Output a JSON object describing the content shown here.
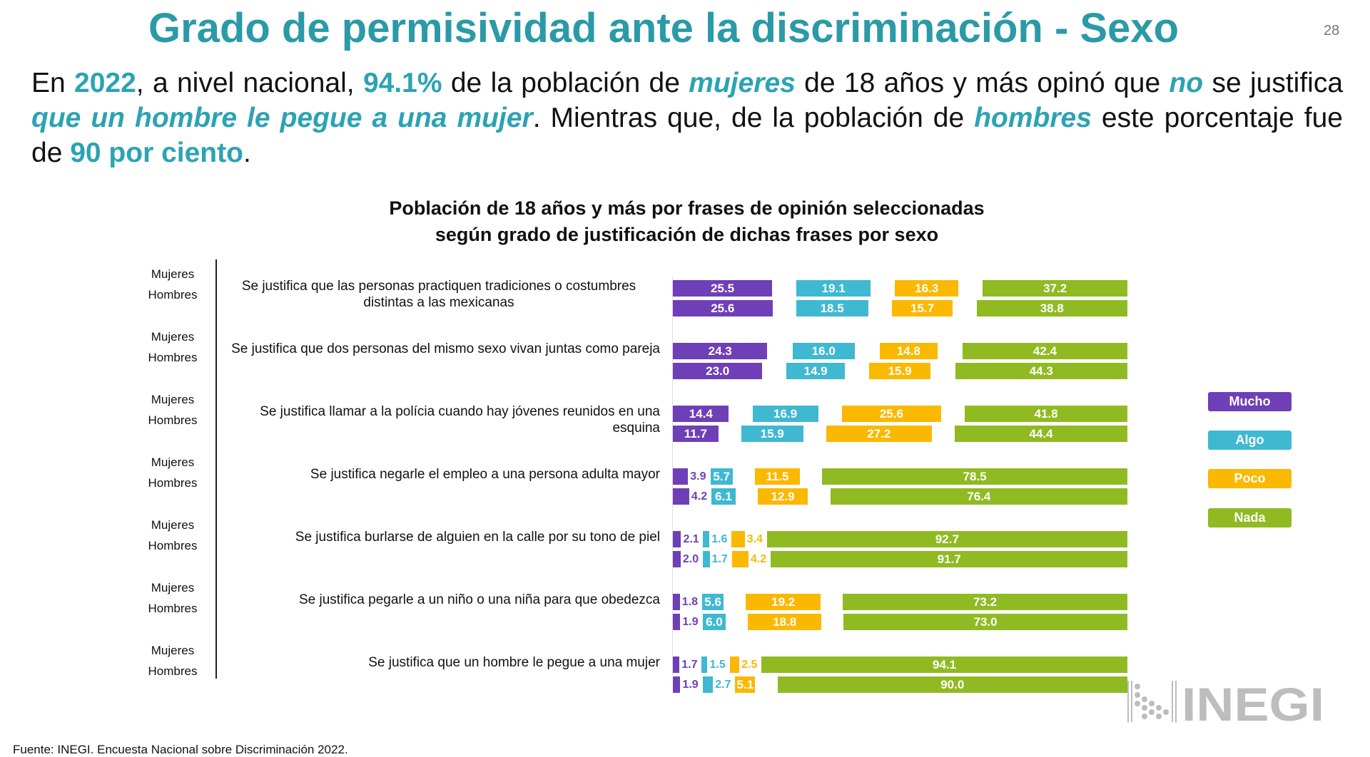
{
  "title": "Grado de permisividad ante la discriminación - Sexo",
  "page_number": "28",
  "paragraph": [
    {
      "t": "En ",
      "s": ""
    },
    {
      "t": "2022",
      "s": "hl"
    },
    {
      "t": ", a nivel nacional, ",
      "s": ""
    },
    {
      "t": "94.1%",
      "s": "hl"
    },
    {
      "t": " de la población de ",
      "s": ""
    },
    {
      "t": "mujeres",
      "s": "hi"
    },
    {
      "t": " de 18 años y más opinó que ",
      "s": ""
    },
    {
      "t": "no",
      "s": "hi"
    },
    {
      "t": " se justifica ",
      "s": ""
    },
    {
      "t": "que un hombre le pegue a una mujer",
      "s": "hi"
    },
    {
      "t": ". Mientras que, de la población de ",
      "s": ""
    },
    {
      "t": "hombres",
      "s": "hi"
    },
    {
      "t": " este porcentaje fue de ",
      "s": ""
    },
    {
      "t": "90 por ciento",
      "s": "hl"
    },
    {
      "t": ".",
      "s": ""
    }
  ],
  "source": "Fuente: INEGI. Encuesta Nacional sobre Discriminación 2022.",
  "logo_text": "INEGI",
  "chart_data": {
    "type": "bar",
    "orientation": "horizontal-stacked",
    "title": "Población de 18 años y más por frases de opinión seleccionadas",
    "subtitle": "según grado de justificación de dichas frases por sexo",
    "sex_labels": [
      "Mujeres",
      "Hombres"
    ],
    "legend": [
      {
        "name": "Mucho",
        "color": "#6f3fb8"
      },
      {
        "name": "Algo",
        "color": "#3fb8d2"
      },
      {
        "name": "Poco",
        "color": "#fbb800"
      },
      {
        "name": "Nada",
        "color": "#90ba22"
      }
    ],
    "legend_position": "right",
    "categories": [
      {
        "phrase": "Se justifica que las personas practiquen tradiciones o costumbres distintas a las mexicanas",
        "mujeres": [
          25.5,
          19.1,
          16.3,
          37.2
        ],
        "hombres": [
          25.6,
          18.5,
          15.7,
          38.8
        ]
      },
      {
        "phrase": "Se justifica que dos personas del mismo sexo vivan juntas como pareja",
        "mujeres": [
          24.3,
          16.0,
          14.8,
          42.4
        ],
        "hombres": [
          23.0,
          14.9,
          15.9,
          44.3
        ]
      },
      {
        "phrase": "Se justifica llamar a la polícia cuando hay jóvenes reunidos en una esquina",
        "mujeres": [
          14.4,
          16.9,
          25.6,
          41.8
        ],
        "hombres": [
          11.7,
          15.9,
          27.2,
          44.4
        ]
      },
      {
        "phrase": "Se justifica negarle el empleo a una persona adulta mayor",
        "mujeres": [
          3.9,
          5.7,
          11.5,
          78.5
        ],
        "hombres": [
          4.2,
          6.1,
          12.9,
          76.4
        ]
      },
      {
        "phrase": "Se justifica burlarse de alguien en la calle por su tono de piel",
        "mujeres": [
          2.1,
          1.6,
          3.4,
          92.7
        ],
        "hombres": [
          2.0,
          1.7,
          4.2,
          91.7
        ]
      },
      {
        "phrase": "Se justifica pegarle a un niño o una niña para que obedezca",
        "mujeres": [
          1.8,
          5.6,
          19.2,
          73.2
        ],
        "hombres": [
          1.9,
          6.0,
          18.8,
          73.0
        ]
      },
      {
        "phrase": "Se justifica que un hombre le pegue a una mujer",
        "mujeres": [
          1.7,
          1.5,
          2.5,
          94.1
        ],
        "hombres": [
          1.9,
          2.7,
          5.1,
          90.0
        ]
      }
    ]
  }
}
